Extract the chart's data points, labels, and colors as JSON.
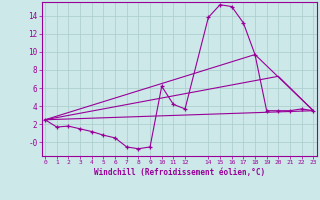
{
  "xlabel": "Windchill (Refroidissement éolien,°C)",
  "bg_color": "#cce8e8",
  "line_color": "#990099",
  "grid_color": "#aacccc",
  "line1_x": [
    0,
    1,
    2,
    3,
    4,
    5,
    6,
    7,
    8,
    9,
    10,
    11,
    12,
    14,
    15,
    16,
    17,
    18,
    19,
    20,
    21,
    22,
    23
  ],
  "line1_y": [
    2.5,
    1.7,
    1.8,
    1.5,
    1.2,
    0.8,
    0.5,
    -0.5,
    -0.7,
    -0.5,
    6.2,
    4.2,
    3.7,
    13.8,
    15.2,
    15.0,
    13.2,
    9.7,
    3.5,
    3.5,
    3.5,
    3.7,
    3.5
  ],
  "line2_x": [
    0,
    23
  ],
  "line2_y": [
    2.5,
    3.5
  ],
  "line3_x": [
    0,
    18,
    23
  ],
  "line3_y": [
    2.5,
    9.7,
    3.5
  ],
  "line4_x": [
    0,
    20,
    23
  ],
  "line4_y": [
    2.5,
    7.3,
    3.5
  ],
  "ylim": [
    -1.5,
    15.5
  ],
  "xlim": [
    -0.3,
    23.3
  ],
  "yticks": [
    0,
    2,
    4,
    6,
    8,
    10,
    12,
    14
  ],
  "ytick_labels": [
    "-0",
    "2",
    "4",
    "6",
    "8",
    "10",
    "12",
    "14"
  ],
  "xticks": [
    0,
    1,
    2,
    3,
    4,
    5,
    6,
    7,
    8,
    9,
    10,
    11,
    12,
    14,
    15,
    16,
    17,
    18,
    19,
    20,
    21,
    22,
    23
  ]
}
